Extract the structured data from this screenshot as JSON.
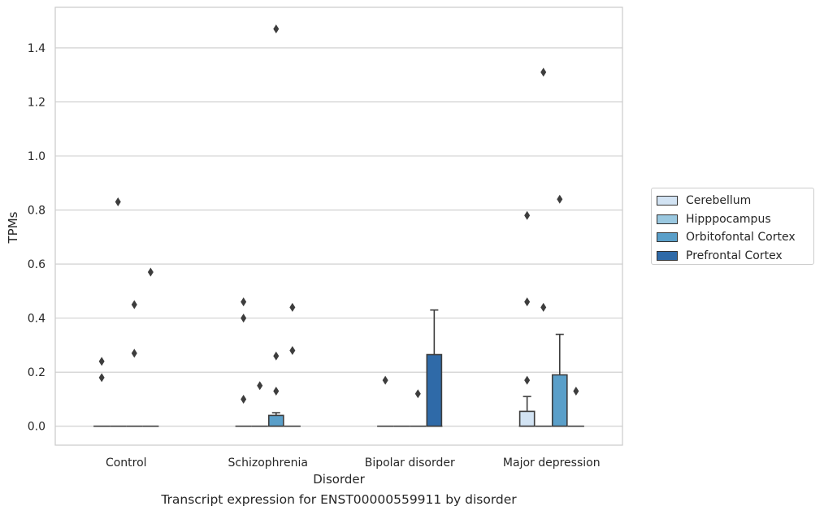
{
  "chart_data": {
    "type": "box",
    "caption": "Transcript expression for ENST00000559911 by disorder",
    "xlabel": "Disorder",
    "ylabel": "TPMs",
    "ylim": [
      -0.07,
      1.55
    ],
    "yticks": [
      0.0,
      0.2,
      0.4,
      0.6,
      0.8,
      1.0,
      1.2,
      1.4
    ],
    "ytick_labels": [
      "0.0",
      "0.2",
      "0.4",
      "0.6",
      "0.8",
      "1.0",
      "1.2",
      "1.4"
    ],
    "grid": "horizontal",
    "legend_position": "right",
    "categories": [
      "Control",
      "Schizophrenia",
      "Bipolar disorder",
      "Major depression"
    ],
    "series": [
      {
        "name": "Cerebellum",
        "color": "#d2e3f3",
        "boxes": [
          {
            "q1": 0,
            "median": 0,
            "q3": 0,
            "whisker_low": 0,
            "whisker_high": 0,
            "outliers": [
              0.24,
              0.18
            ]
          },
          {
            "q1": 0,
            "median": 0,
            "q3": 0,
            "whisker_low": 0,
            "whisker_high": 0,
            "outliers": [
              0.46,
              0.4,
              0.1
            ]
          },
          {
            "q1": 0,
            "median": 0,
            "q3": 0,
            "whisker_low": 0,
            "whisker_high": 0,
            "outliers": [
              0.17
            ]
          },
          {
            "q1": 0,
            "median": 0,
            "q3": 0.055,
            "whisker_low": 0,
            "whisker_high": 0.11,
            "outliers": [
              0.78,
              0.46,
              0.17
            ]
          }
        ]
      },
      {
        "name": "Hipppocampus",
        "color": "#9ac8e0",
        "boxes": [
          {
            "q1": 0,
            "median": 0,
            "q3": 0,
            "whisker_low": 0,
            "whisker_high": 0,
            "outliers": [
              0.83
            ]
          },
          {
            "q1": 0,
            "median": 0,
            "q3": 0,
            "whisker_low": 0,
            "whisker_high": 0,
            "outliers": [
              0.15
            ]
          },
          {
            "q1": 0,
            "median": 0,
            "q3": 0,
            "whisker_low": 0,
            "whisker_high": 0,
            "outliers": []
          },
          {
            "q1": 0,
            "median": 0,
            "q3": 0,
            "whisker_low": 0,
            "whisker_high": 0,
            "outliers": [
              1.31,
              0.44
            ]
          }
        ]
      },
      {
        "name": "Orbitofontal Cortex",
        "color": "#5a9fc9",
        "boxes": [
          {
            "q1": 0,
            "median": 0,
            "q3": 0,
            "whisker_low": 0,
            "whisker_high": 0,
            "outliers": [
              0.45,
              0.27
            ]
          },
          {
            "q1": 0,
            "median": 0,
            "q3": 0.04,
            "whisker_low": 0,
            "whisker_high": 0.05,
            "outliers": [
              1.47,
              0.26,
              0.13
            ]
          },
          {
            "q1": 0,
            "median": 0,
            "q3": 0,
            "whisker_low": 0,
            "whisker_high": 0,
            "outliers": [
              0.12
            ]
          },
          {
            "q1": 0,
            "median": 0,
            "q3": 0.19,
            "whisker_low": 0,
            "whisker_high": 0.34,
            "outliers": [
              0.84
            ]
          }
        ]
      },
      {
        "name": "Prefrontal Cortex",
        "color": "#2f6aa8",
        "boxes": [
          {
            "q1": 0,
            "median": 0,
            "q3": 0,
            "whisker_low": 0,
            "whisker_high": 0,
            "outliers": [
              0.57
            ]
          },
          {
            "q1": 0,
            "median": 0,
            "q3": 0,
            "whisker_low": 0,
            "whisker_high": 0,
            "outliers": [
              0.44,
              0.28
            ]
          },
          {
            "q1": 0,
            "median": 0,
            "q3": 0.265,
            "whisker_low": 0,
            "whisker_high": 0.43,
            "outliers": []
          },
          {
            "q1": 0,
            "median": 0,
            "q3": 0,
            "whisker_low": 0,
            "whisker_high": 0,
            "outliers": [
              0.13
            ]
          }
        ]
      }
    ]
  }
}
